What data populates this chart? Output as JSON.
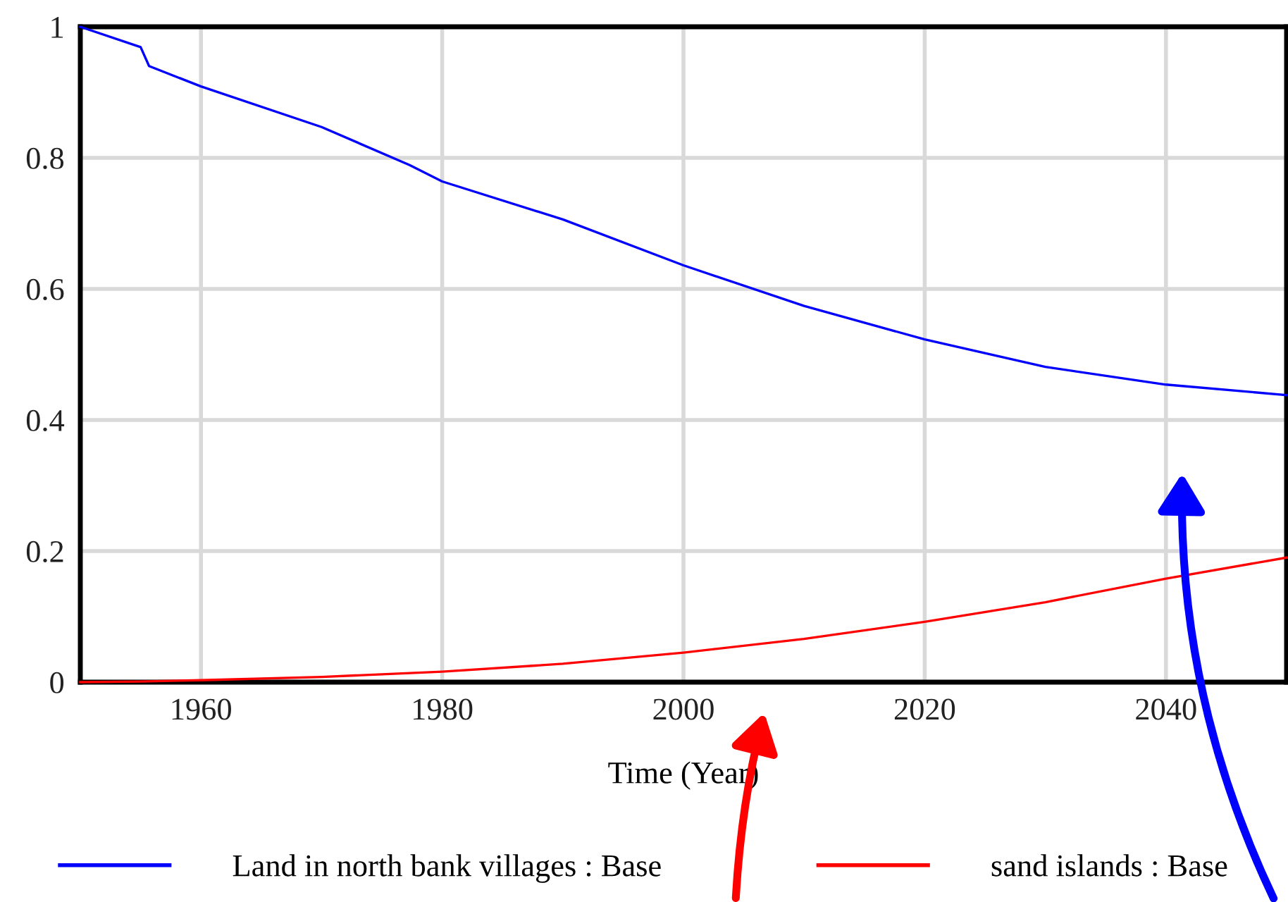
{
  "chart_data": {
    "type": "line",
    "xlabel": "Time (Year)",
    "xlim": [
      1950,
      2050
    ],
    "ylim": [
      0,
      1
    ],
    "xticks": [
      1960,
      1980,
      2000,
      2020,
      2040
    ],
    "yticks": [
      0,
      0.2,
      0.4,
      0.6,
      0.8,
      1
    ],
    "grid": true,
    "legend": "bottom",
    "series": [
      {
        "name": "Land in north bank villages : Base",
        "color": "#0000ff",
        "x": [
          1950,
          1955,
          1955.7,
          1960,
          1970,
          1977.3,
          1980,
          1990,
          2000,
          2010,
          2020,
          2030,
          2040,
          2050
        ],
        "values": [
          1.0,
          0.969,
          0.94,
          0.909,
          0.847,
          0.789,
          0.764,
          0.706,
          0.636,
          0.574,
          0.523,
          0.481,
          0.454,
          0.438
        ]
      },
      {
        "name": "sand islands : Base",
        "color": "#ff0000",
        "x": [
          1950,
          1955,
          1960,
          1970,
          1980,
          1990,
          2000,
          2010,
          2020,
          2030,
          2040,
          2050
        ],
        "values": [
          0,
          0.001,
          0.003,
          0.008,
          0.016,
          0.028,
          0.045,
          0.066,
          0.092,
          0.122,
          0.158,
          0.19
        ]
      }
    ]
  }
}
